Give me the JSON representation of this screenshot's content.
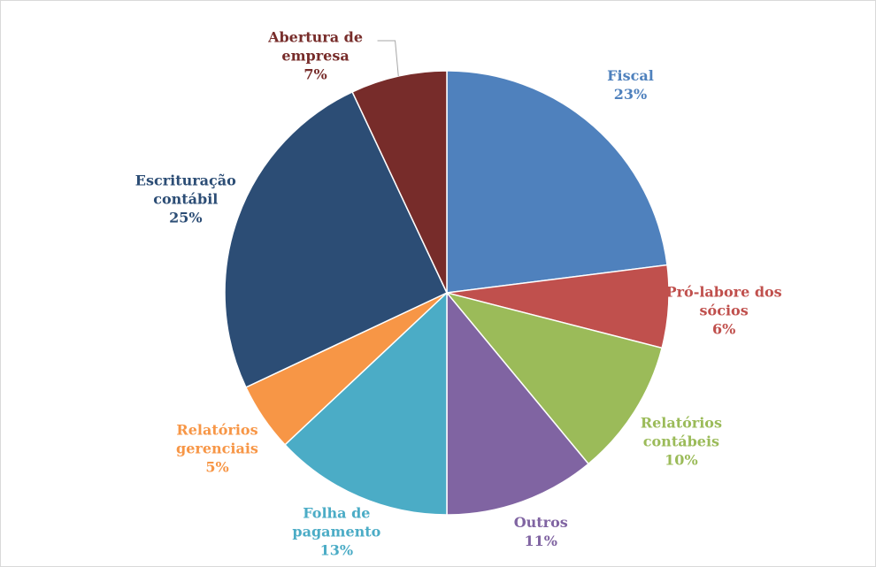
{
  "chart_data": {
    "type": "pie",
    "categories": [
      "Fiscal",
      "Pró-labore dos sócios",
      "Relatórios contábeis",
      "Outros",
      "Folha de pagamento",
      "Relatórios gerenciais",
      "Escrituração contábil",
      "Abertura de empresa"
    ],
    "values": [
      23,
      6,
      10,
      11,
      13,
      5,
      25,
      7
    ],
    "value_labels": [
      "23%",
      "6%",
      "10%",
      "11%",
      "13%",
      "5%",
      "25%",
      "7%"
    ],
    "colors": [
      "#4f81bd",
      "#c0504d",
      "#9bbb59",
      "#8064a2",
      "#4bacc6",
      "#f79646",
      "#2c4d75",
      "#772c2a"
    ]
  }
}
